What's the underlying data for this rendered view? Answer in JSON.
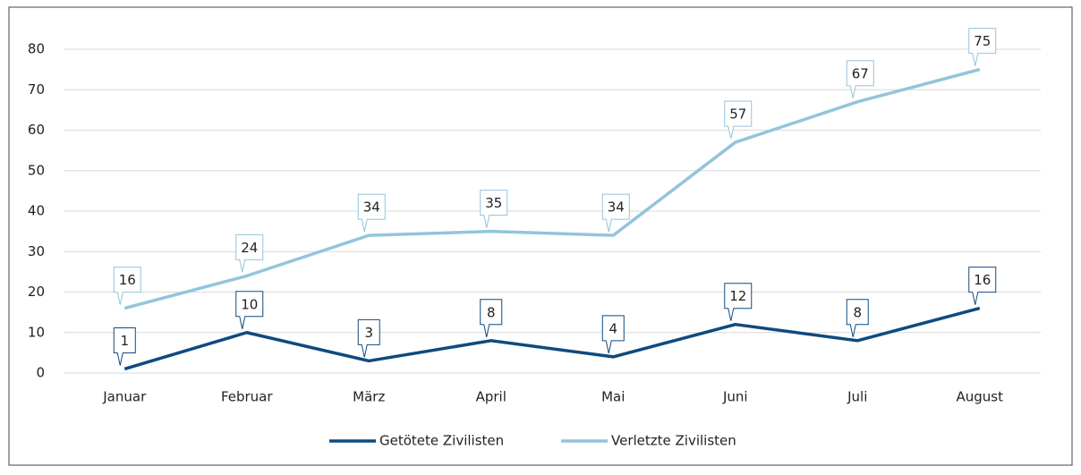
{
  "chart_data": {
    "type": "line",
    "categories": [
      "Januar",
      "Februar",
      "März",
      "April",
      "Mai",
      "Juni",
      "Juli",
      "August"
    ],
    "series": [
      {
        "name": "Getötete Zivilisten",
        "color": "#0f4a7e",
        "values": [
          1,
          10,
          3,
          8,
          4,
          12,
          8,
          16
        ]
      },
      {
        "name": "Verletzte Zivilisten",
        "color": "#93c4dc",
        "values": [
          16,
          24,
          34,
          35,
          34,
          57,
          67,
          75
        ]
      }
    ],
    "ylim": [
      0,
      80
    ],
    "yticks": [
      0,
      10,
      20,
      30,
      40,
      50,
      60,
      70,
      80
    ],
    "grid": true,
    "legend": "bottom"
  }
}
